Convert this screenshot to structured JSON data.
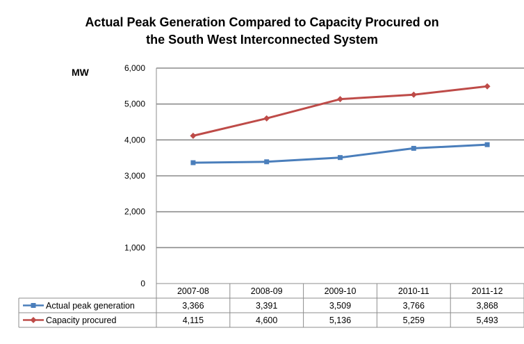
{
  "chart_data": {
    "type": "line",
    "title_line1": "Actual Peak Generation Compared to Capacity Procured on",
    "title_line2": "the South West Interconnected System",
    "ylabel": "MW",
    "ylim": [
      0,
      6000
    ],
    "yticks": [
      0,
      1000,
      2000,
      3000,
      4000,
      5000,
      6000
    ],
    "ytick_labels": [
      "0",
      "1,000",
      "2,000",
      "3,000",
      "4,000",
      "5,000",
      "6,000"
    ],
    "grid": true,
    "legend": "data-table",
    "categories": [
      "2007-08",
      "2008-09",
      "2009-10",
      "2010-11",
      "2011-12"
    ],
    "series": [
      {
        "name": "Actual peak generation",
        "color": "#4a7ebb",
        "values": [
          3366,
          3391,
          3509,
          3766,
          3868
        ],
        "labels": [
          "3,366",
          "3,391",
          "3,509",
          "3,766",
          "3,868"
        ]
      },
      {
        "name": "Capacity procured",
        "color": "#be4b48",
        "values": [
          4115,
          4600,
          5136,
          5259,
          5493
        ],
        "labels": [
          "4,115",
          "4,600",
          "5,136",
          "5,259",
          "5,493"
        ]
      }
    ]
  }
}
